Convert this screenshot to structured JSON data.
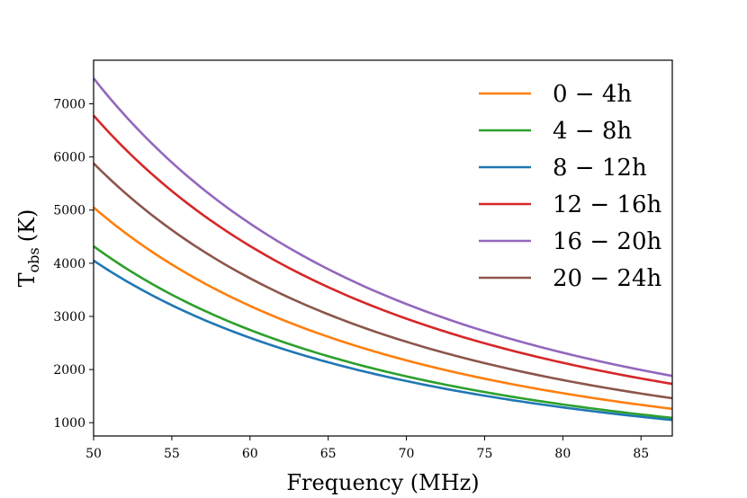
{
  "chart_data": {
    "type": "line",
    "title": "",
    "xlabel": "Frequency (MHz)",
    "ylabel_main": "T",
    "ylabel_sub": "obs",
    "ylabel_unit": "(K)",
    "xlim": [
      50,
      87
    ],
    "ylim": [
      750,
      7820
    ],
    "xticks": [
      50,
      55,
      60,
      65,
      70,
      75,
      80,
      85
    ],
    "yticks": [
      1000,
      2000,
      3000,
      4000,
      5000,
      6000,
      7000
    ],
    "grid": false,
    "legend_position": "top-right",
    "spectral_model": "power-law",
    "series": [
      {
        "name": "0 − 4h",
        "color": "#ff7f0e",
        "x": [
          50,
          87
        ],
        "y": [
          5050,
          1260
        ]
      },
      {
        "name": "4 − 8h",
        "color": "#2ca02c",
        "x": [
          50,
          87
        ],
        "y": [
          4320,
          1090
        ]
      },
      {
        "name": "8 − 12h",
        "color": "#1f77b4",
        "x": [
          50,
          87
        ],
        "y": [
          4050,
          1050
        ]
      },
      {
        "name": "12 − 16h",
        "color": "#d62728",
        "x": [
          50,
          87
        ],
        "y": [
          6780,
          1730
        ]
      },
      {
        "name": "16 − 20h",
        "color": "#9467bd",
        "x": [
          50,
          87
        ],
        "y": [
          7480,
          1880
        ]
      },
      {
        "name": "20 − 24h",
        "color": "#8c564b",
        "x": [
          50,
          87
        ],
        "y": [
          5880,
          1460
        ]
      }
    ]
  }
}
